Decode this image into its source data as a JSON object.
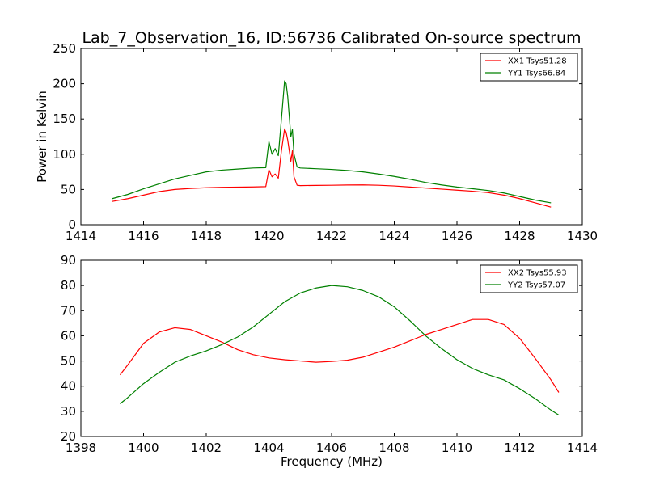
{
  "title": "Lab_7_Observation_16, ID:56736 Calibrated On-source spectrum",
  "chart_data": [
    {
      "type": "line",
      "xlabel": "",
      "ylabel": "Power in Kelvin",
      "xlim": [
        1414,
        1430
      ],
      "ylim": [
        0,
        250
      ],
      "xticks": [
        1414,
        1416,
        1418,
        1420,
        1422,
        1424,
        1426,
        1428,
        1430
      ],
      "yticks": [
        0,
        50,
        100,
        150,
        200,
        250
      ],
      "legend_position": "top-right",
      "series": [
        {
          "name": "XX1 Tsys51.28",
          "color": "#ff0000",
          "points": [
            [
              1415,
              33
            ],
            [
              1415.5,
              37
            ],
            [
              1416,
              42
            ],
            [
              1416.5,
              47
            ],
            [
              1417,
              50
            ],
            [
              1417.5,
              51.5
            ],
            [
              1418,
              52.5
            ],
            [
              1418.5,
              53
            ],
            [
              1419,
              53.3
            ],
            [
              1419.5,
              53.6
            ],
            [
              1419.9,
              54
            ],
            [
              1420.0,
              78
            ],
            [
              1420.1,
              68
            ],
            [
              1420.2,
              72
            ],
            [
              1420.3,
              66
            ],
            [
              1420.4,
              105
            ],
            [
              1420.5,
              136
            ],
            [
              1420.55,
              131
            ],
            [
              1420.6,
              120
            ],
            [
              1420.7,
              90
            ],
            [
              1420.75,
              105
            ],
            [
              1420.8,
              68
            ],
            [
              1420.9,
              56
            ],
            [
              1421,
              55.5
            ],
            [
              1421.5,
              55.8
            ],
            [
              1422,
              56
            ],
            [
              1422.5,
              56.3
            ],
            [
              1423,
              56.5
            ],
            [
              1423.5,
              56
            ],
            [
              1424,
              55
            ],
            [
              1424.5,
              53.5
            ],
            [
              1425,
              52
            ],
            [
              1425.5,
              50.5
            ],
            [
              1426,
              49
            ],
            [
              1426.5,
              47.5
            ],
            [
              1427,
              45.5
            ],
            [
              1427.5,
              42
            ],
            [
              1428,
              37
            ],
            [
              1428.5,
              31
            ],
            [
              1429,
              25
            ]
          ]
        },
        {
          "name": "YY1 Tsys66.84",
          "color": "#008000",
          "points": [
            [
              1415,
              37
            ],
            [
              1415.5,
              43
            ],
            [
              1416,
              51
            ],
            [
              1416.5,
              58
            ],
            [
              1417,
              65
            ],
            [
              1417.5,
              70
            ],
            [
              1418,
              75
            ],
            [
              1418.5,
              77.5
            ],
            [
              1419,
              79
            ],
            [
              1419.5,
              80.5
            ],
            [
              1419.9,
              81
            ],
            [
              1420.0,
              118
            ],
            [
              1420.1,
              100
            ],
            [
              1420.2,
              108
            ],
            [
              1420.3,
              98
            ],
            [
              1420.4,
              150
            ],
            [
              1420.5,
              204
            ],
            [
              1420.55,
              200
            ],
            [
              1420.6,
              182
            ],
            [
              1420.7,
              125
            ],
            [
              1420.75,
              135
            ],
            [
              1420.8,
              100
            ],
            [
              1420.9,
              82
            ],
            [
              1421,
              80.5
            ],
            [
              1421.5,
              79.5
            ],
            [
              1422,
              78.5
            ],
            [
              1422.5,
              77
            ],
            [
              1423,
              75
            ],
            [
              1423.5,
              72
            ],
            [
              1424,
              68.5
            ],
            [
              1424.5,
              64.5
            ],
            [
              1425,
              60
            ],
            [
              1425.5,
              56.5
            ],
            [
              1426,
              53.5
            ],
            [
              1426.5,
              51
            ],
            [
              1427,
              48.5
            ],
            [
              1427.5,
              45
            ],
            [
              1428,
              40
            ],
            [
              1428.5,
              35
            ],
            [
              1429,
              31
            ]
          ]
        }
      ]
    },
    {
      "type": "line",
      "xlabel": "Frequency (MHz)",
      "ylabel": "",
      "xlim": [
        1398,
        1414
      ],
      "ylim": [
        20,
        90
      ],
      "xticks": [
        1398,
        1400,
        1402,
        1404,
        1406,
        1408,
        1410,
        1412,
        1414
      ],
      "yticks": [
        20,
        30,
        40,
        50,
        60,
        70,
        80,
        90
      ],
      "legend_position": "top-right",
      "series": [
        {
          "name": "XX2 Tsys55.93",
          "color": "#ff0000",
          "points": [
            [
              1399.25,
              44.5
            ],
            [
              1399.5,
              48.5
            ],
            [
              1400,
              57
            ],
            [
              1400.5,
              61.5
            ],
            [
              1401,
              63.2
            ],
            [
              1401.5,
              62.5
            ],
            [
              1402,
              60
            ],
            [
              1402.5,
              57.5
            ],
            [
              1403,
              54.5
            ],
            [
              1403.5,
              52.5
            ],
            [
              1404,
              51.2
            ],
            [
              1404.5,
              50.5
            ],
            [
              1405,
              50
            ],
            [
              1405.5,
              49.5
            ],
            [
              1406,
              49.8
            ],
            [
              1406.5,
              50.3
            ],
            [
              1407,
              51.5
            ],
            [
              1407.5,
              53.5
            ],
            [
              1408,
              55.5
            ],
            [
              1408.5,
              58
            ],
            [
              1409,
              60.5
            ],
            [
              1409.5,
              62.5
            ],
            [
              1410,
              64.5
            ],
            [
              1410.5,
              66.5
            ],
            [
              1411,
              66.5
            ],
            [
              1411.5,
              64.5
            ],
            [
              1412,
              59
            ],
            [
              1412.5,
              51
            ],
            [
              1413,
              42.5
            ],
            [
              1413.25,
              37.5
            ]
          ]
        },
        {
          "name": "YY2 Tsys57.07",
          "color": "#008000",
          "points": [
            [
              1399.25,
              33
            ],
            [
              1399.5,
              35.5
            ],
            [
              1400,
              41
            ],
            [
              1400.5,
              45.5
            ],
            [
              1401,
              49.5
            ],
            [
              1401.5,
              52
            ],
            [
              1402,
              54
            ],
            [
              1402.5,
              56.5
            ],
            [
              1403,
              59.5
            ],
            [
              1403.5,
              63.5
            ],
            [
              1404,
              68.5
            ],
            [
              1404.5,
              73.5
            ],
            [
              1405,
              77
            ],
            [
              1405.5,
              79
            ],
            [
              1406,
              80
            ],
            [
              1406.5,
              79.5
            ],
            [
              1407,
              78
            ],
            [
              1407.5,
              75.5
            ],
            [
              1408,
              71.5
            ],
            [
              1408.5,
              66
            ],
            [
              1409,
              60
            ],
            [
              1409.5,
              55
            ],
            [
              1410,
              50.5
            ],
            [
              1410.5,
              47
            ],
            [
              1411,
              44.5
            ],
            [
              1411.5,
              42.5
            ],
            [
              1412,
              39
            ],
            [
              1412.5,
              35
            ],
            [
              1413,
              30.5
            ],
            [
              1413.25,
              28.5
            ]
          ]
        }
      ]
    }
  ]
}
